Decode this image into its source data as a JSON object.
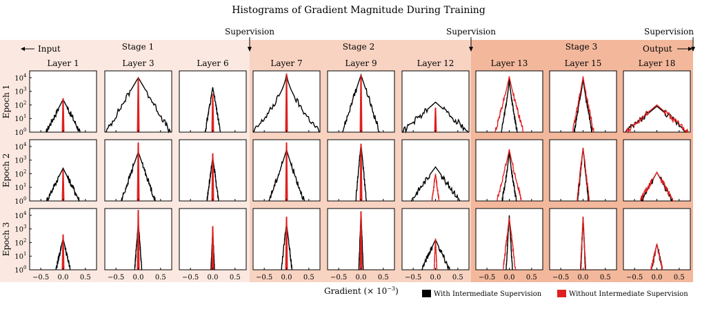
{
  "chart_data": {
    "type": "histogram-grid",
    "title": "Histograms of Gradient Magnitude During Training",
    "xlabel": "Gradient (× 10",
    "xlabel_exp": "−3",
    "xlabel_close": ")",
    "xticks": [
      "−0.5",
      "0.0",
      "0.5"
    ],
    "yticks": [
      "10",
      "10",
      "10",
      "10",
      "10"
    ],
    "ytick_exps": [
      "0",
      "1",
      "2",
      "3",
      "4"
    ],
    "input_label": "Input",
    "output_label": "Output",
    "supervision_label": "Supervision",
    "stages": [
      "Stage 1",
      "Stage 2",
      "Stage 3"
    ],
    "stage_colors": [
      "#fbe9e1",
      "#f8d3c2",
      "#f3b89c"
    ],
    "layers": [
      "Layer 1",
      "Layer 3",
      "Layer 6",
      "Layer 7",
      "Layer 9",
      "Layer 12",
      "Layer 13",
      "Layer 15",
      "Layer 18"
    ],
    "epochs": [
      "Epoch 1",
      "Epoch 2",
      "Epoch 3"
    ],
    "legend": [
      {
        "name": "With Intermediate Supervision",
        "color": "#000000"
      },
      {
        "name": "Without Intermediate Supervision",
        "color": "#e02020"
      }
    ],
    "xlim": [
      -0.75,
      0.75
    ],
    "ylim_log10": [
      0,
      4.5
    ],
    "panels": [
      [
        {
          "black": {
            "peak": 2.4,
            "width": 0.38,
            "shape": 1.0
          },
          "red": {
            "peak": 2.5,
            "width": 0.004
          }
        },
        {
          "black": {
            "peak": 4.0,
            "width": 0.72,
            "shape": 1.0
          },
          "red": {
            "peak": 4.0,
            "width": 0.006
          }
        },
        {
          "black": {
            "peak": 3.3,
            "width": 0.17,
            "shape": 1.0
          },
          "red": {
            "peak": 2.8,
            "width": 0.005
          }
        },
        {
          "black": {
            "peak": 4.3,
            "width": 0.75,
            "shape": 0.65
          },
          "red": {
            "peak": 4.3,
            "width": 0.006
          }
        },
        {
          "black": {
            "peak": 4.2,
            "width": 0.42,
            "shape": 1.0
          },
          "red": {
            "peak": 4.2,
            "width": 0.006
          }
        },
        {
          "black": {
            "peak": 2.2,
            "width": 0.75,
            "shape": 1.0
          },
          "red": {
            "peak": 1.8,
            "width": 0.01
          }
        },
        {
          "black": {
            "peak": 3.9,
            "width": 0.18,
            "shape": 0.8
          },
          "red": {
            "peak": 4.1,
            "width": 0.32,
            "shape": 0.9
          }
        },
        {
          "black": {
            "peak": 3.9,
            "width": 0.2,
            "shape": 0.9
          },
          "red": {
            "peak": 4.1,
            "width": 0.24,
            "shape": 0.9
          }
        },
        {
          "black": {
            "peak": 1.9,
            "width": 0.7,
            "shape": 1.0
          },
          "red": {
            "peak": 2.0,
            "width": 0.7,
            "shape": 1.0
          }
        }
      ],
      [
        {
          "black": {
            "peak": 2.4,
            "width": 0.37,
            "shape": 1.0
          },
          "red": {
            "peak": 2.3,
            "width": 0.004
          }
        },
        {
          "black": {
            "peak": 3.6,
            "width": 0.38,
            "shape": 1.0
          },
          "red": {
            "peak": 4.3,
            "width": 0.006
          }
        },
        {
          "black": {
            "peak": 3.2,
            "width": 0.13,
            "shape": 1.0
          },
          "red": {
            "peak": 3.5,
            "width": 0.005
          }
        },
        {
          "black": {
            "peak": 3.8,
            "width": 0.4,
            "shape": 0.9
          },
          "red": {
            "peak": 4.3,
            "width": 0.006
          }
        },
        {
          "black": {
            "peak": 4.2,
            "width": 0.12,
            "shape": 1.0
          },
          "red": {
            "peak": 4.2,
            "width": 0.006
          }
        },
        {
          "black": {
            "peak": 2.5,
            "width": 0.55,
            "shape": 1.0
          },
          "red": {
            "peak": 2.0,
            "width": 0.08
          }
        },
        {
          "black": {
            "peak": 3.7,
            "width": 0.16,
            "shape": 0.8
          },
          "red": {
            "peak": 3.8,
            "width": 0.28,
            "shape": 0.9
          }
        },
        {
          "black": {
            "peak": 3.9,
            "width": 0.12,
            "shape": 1.0
          },
          "red": {
            "peak": 3.9,
            "width": 0.14,
            "shape": 1.0
          }
        },
        {
          "black": {
            "peak": 2.1,
            "width": 0.35,
            "shape": 1.0
          },
          "red": {
            "peak": 2.1,
            "width": 0.38,
            "shape": 1.0
          }
        }
      ],
      [
        {
          "black": {
            "peak": 2.3,
            "width": 0.16,
            "shape": 1.0
          },
          "red": {
            "peak": 2.6,
            "width": 0.004
          }
        },
        {
          "black": {
            "peak": 3.5,
            "width": 0.08,
            "shape": 1.0
          },
          "red": {
            "peak": 4.4,
            "width": 0.004
          }
        },
        {
          "black": {
            "peak": 2.9,
            "width": 0.04,
            "shape": 1.0
          },
          "red": {
            "peak": 3.2,
            "width": 0.004
          }
        },
        {
          "black": {
            "peak": 3.4,
            "width": 0.12,
            "shape": 1.0
          },
          "red": {
            "peak": 3.9,
            "width": 0.005
          }
        },
        {
          "black": {
            "peak": 4.2,
            "width": 0.05,
            "shape": 1.0
          },
          "red": {
            "peak": 4.3,
            "width": 0.005
          }
        },
        {
          "black": {
            "peak": 2.2,
            "width": 0.32,
            "shape": 1.0
          },
          "red": {
            "peak": 2.3,
            "width": 0.03
          }
        },
        {
          "black": {
            "peak": 4.0,
            "width": 0.07,
            "shape": 1.0
          },
          "red": {
            "peak": 3.8,
            "width": 0.14,
            "shape": 1.0
          }
        },
        {
          "black": {
            "peak": 3.9,
            "width": 0.05,
            "shape": 1.0
          },
          "red": {
            "peak": 3.9,
            "width": 0.06,
            "shape": 1.0
          }
        },
        {
          "black": {
            "peak": 1.9,
            "width": 0.12,
            "shape": 1.0
          },
          "red": {
            "peak": 1.9,
            "width": 0.13,
            "shape": 1.0
          }
        }
      ]
    ]
  }
}
